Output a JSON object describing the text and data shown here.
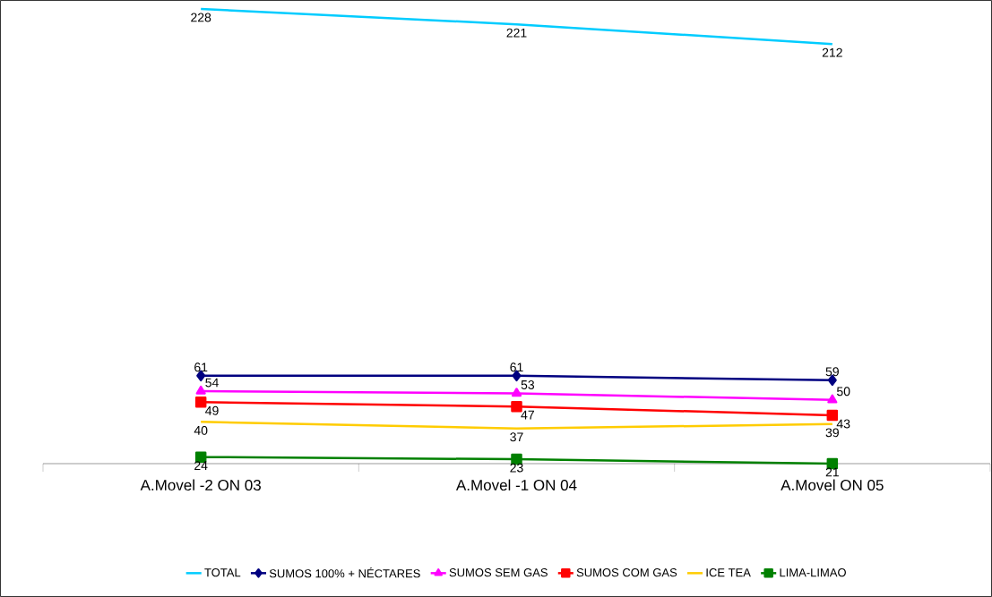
{
  "chart_data": {
    "type": "line",
    "categories": [
      "A.Movel -2 ON 03",
      "A.Movel -1 ON 04",
      "A.Movel ON 05"
    ],
    "tick_labels": "x",
    "data_labels": true,
    "legend": "bottom",
    "line_style": "solid",
    "series": [
      {
        "name": "TOTAL",
        "color": "#00ccff",
        "marker": "none",
        "values": [
          228,
          221,
          212
        ]
      },
      {
        "name": "SUMOS 100% + NÉCTARES",
        "color": "#000080",
        "marker": "diamond",
        "values": [
          61,
          61,
          59
        ]
      },
      {
        "name": "SUMOS SEM GAS",
        "color": "#ff00ff",
        "marker": "triangle",
        "values": [
          54,
          53,
          50
        ]
      },
      {
        "name": "SUMOS COM GAS",
        "color": "#ff0000",
        "marker": "square",
        "values": [
          49,
          47,
          43
        ]
      },
      {
        "name": "ICE TEA",
        "color": "#ffcc00",
        "marker": "none",
        "values": [
          40,
          37,
          39
        ]
      },
      {
        "name": "LIMA-LIMAO",
        "color": "#008000",
        "marker": "square",
        "values": [
          24,
          23,
          21
        ]
      }
    ]
  }
}
